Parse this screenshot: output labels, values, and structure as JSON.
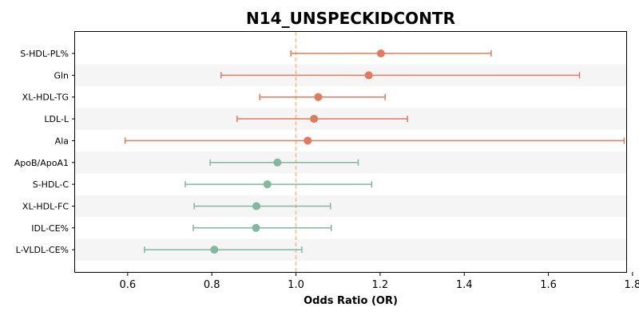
{
  "chart_data": {
    "type": "forest",
    "title": "N14_UNSPECKIDCONTR",
    "xlabel": "Odds Ratio (OR)",
    "ylabel": "",
    "xlim": [
      0.475,
      1.785
    ],
    "xticks": [
      "0.6",
      "0.8",
      "1.0",
      "1.2",
      "1.4",
      "1.6",
      "1.8"
    ],
    "reference_line": 1.0,
    "alternating_row_shading": true,
    "colors": {
      "positive": "#e07b5f",
      "negative": "#82b89f",
      "reference": "#eec27a",
      "row_shade": "#f5f5f5"
    },
    "rows": [
      {
        "label": "S-HDL-PL%",
        "or": 1.202,
        "lower": 0.988,
        "upper": 1.464,
        "group": "positive"
      },
      {
        "label": "Gln",
        "or": 1.173,
        "lower": 0.822,
        "upper": 1.674,
        "group": "positive"
      },
      {
        "label": "XL-HDL-TG",
        "or": 1.053,
        "lower": 0.914,
        "upper": 1.212,
        "group": "positive"
      },
      {
        "label": "LDL-L",
        "or": 1.043,
        "lower": 0.86,
        "upper": 1.265,
        "group": "positive"
      },
      {
        "label": "Ala",
        "or": 1.028,
        "lower": 0.594,
        "upper": 1.78,
        "group": "positive"
      },
      {
        "label": "ApoB/ApoA1",
        "or": 0.956,
        "lower": 0.796,
        "upper": 1.148,
        "group": "negative"
      },
      {
        "label": "S-HDL-C",
        "or": 0.932,
        "lower": 0.737,
        "upper": 1.18,
        "group": "negative"
      },
      {
        "label": "XL-HDL-FC",
        "or": 0.906,
        "lower": 0.758,
        "upper": 1.082,
        "group": "negative"
      },
      {
        "label": "IDL-CE%",
        "or": 0.905,
        "lower": 0.756,
        "upper": 1.084,
        "group": "negative"
      },
      {
        "label": "L-VLDL-CE%",
        "or": 0.806,
        "lower": 0.64,
        "upper": 1.014,
        "group": "negative"
      }
    ]
  }
}
